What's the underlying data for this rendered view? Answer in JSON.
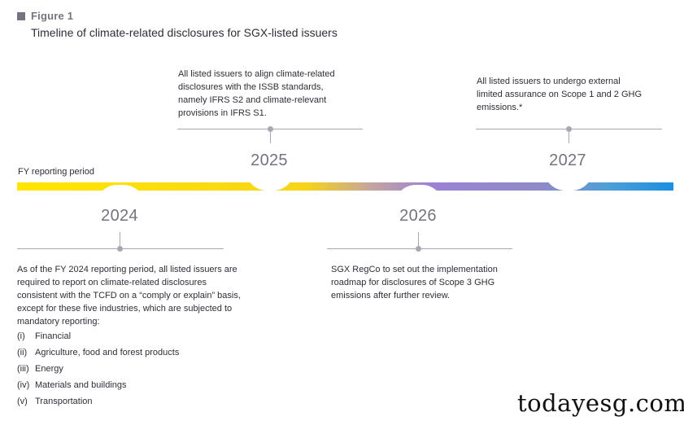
{
  "figure": {
    "label": "Figure 1",
    "title": "Timeline of climate-related disclosures for SGX-listed issuers"
  },
  "timeline": {
    "bar_label": "FY reporting period",
    "colors": {
      "start": "#ffe600",
      "middle": "#9c82d4",
      "end": "#1c8ee0"
    },
    "milestones": [
      {
        "year": "2024",
        "text": "As of the FY 2024 reporting period, all listed issuers are required to report on climate-related disclosures consistent with the TCFD on a “comply or explain” basis, except for these five industries, which are subjected to mandatory reporting:",
        "list": [
          {
            "num": "(i)",
            "label": "Financial"
          },
          {
            "num": "(ii)",
            "label": "Agriculture, food and forest products"
          },
          {
            "num": "(iii)",
            "label": "Energy"
          },
          {
            "num": "(iv)",
            "label": "Materials and buildings"
          },
          {
            "num": "(v)",
            "label": "Transportation"
          }
        ]
      },
      {
        "year": "2025",
        "text": "All listed issuers to align climate-related disclosures with the ISSB standards, namely IFRS S2 and climate-relevant provisions in IFRS S1."
      },
      {
        "year": "2026",
        "text": "SGX RegCo to set out the implementation roadmap for disclosures of Scope 3 GHG emissions after further review."
      },
      {
        "year": "2027",
        "text": "All listed issuers to undergo external limited assurance on Scope 1 and 2 GHG emissions.*"
      }
    ]
  },
  "watermark": "todayesg.com"
}
